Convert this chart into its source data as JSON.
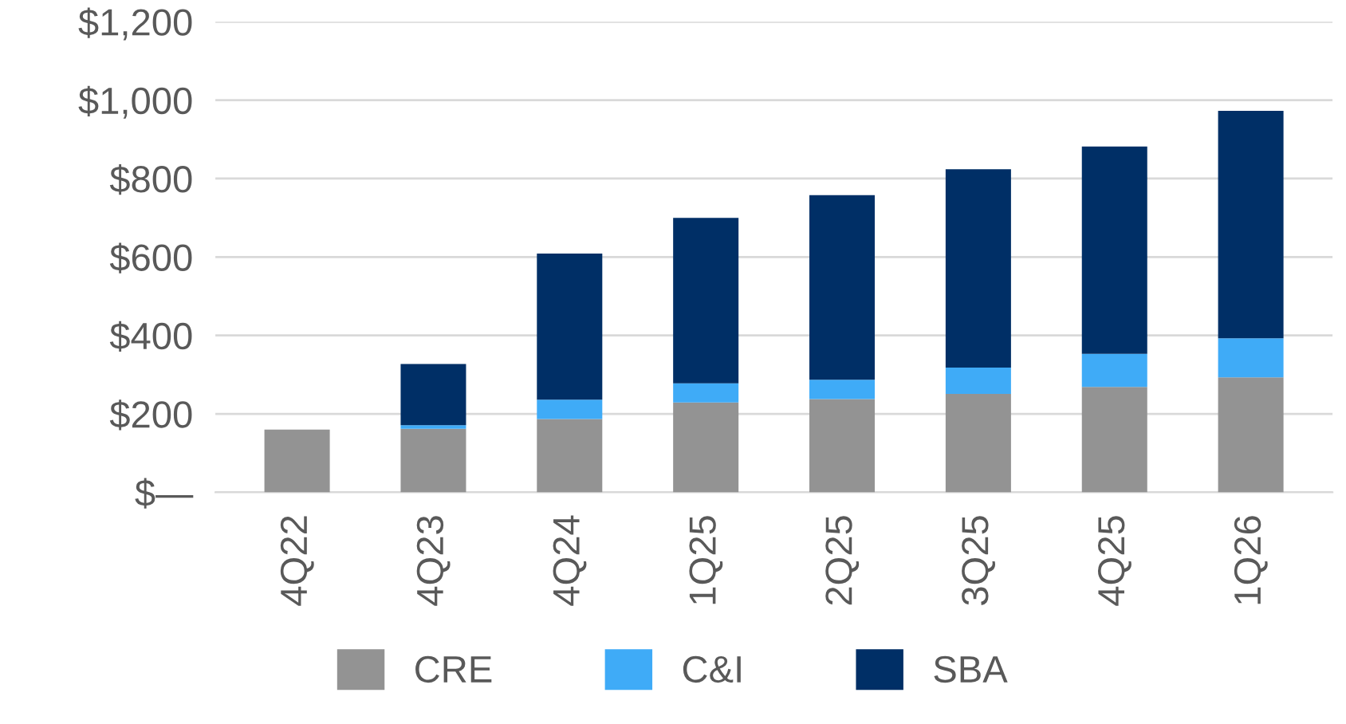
{
  "chart_data": {
    "type": "bar",
    "stacked": true,
    "categories": [
      "4Q22",
      "4Q23",
      "4Q24",
      "1Q25",
      "2Q25",
      "3Q25",
      "4Q25",
      "1Q26"
    ],
    "series": [
      {
        "name": "CRE",
        "color": "#939393",
        "values": [
          160,
          162,
          187,
          229,
          238,
          251,
          269,
          293
        ]
      },
      {
        "name": "C&I",
        "color": "#3fabf7",
        "values": [
          null,
          9,
          49,
          49,
          49,
          67,
          84,
          100
        ]
      },
      {
        "name": "SBA",
        "color": "#002f66",
        "values": [
          null,
          156,
          373,
          422,
          471,
          506,
          529,
          580
        ]
      }
    ],
    "ylim": [
      0,
      1200
    ],
    "yticks": [
      {
        "value": 0,
        "label": "$—"
      },
      {
        "value": 200,
        "label": "$200"
      },
      {
        "value": 400,
        "label": "$400"
      },
      {
        "value": 600,
        "label": "$600"
      },
      {
        "value": 800,
        "label": "$800"
      },
      {
        "value": 1000,
        "label": "$1,000"
      },
      {
        "value": 1200,
        "label": "$1,200"
      }
    ],
    "grid": "y",
    "legend": "bottom"
  }
}
